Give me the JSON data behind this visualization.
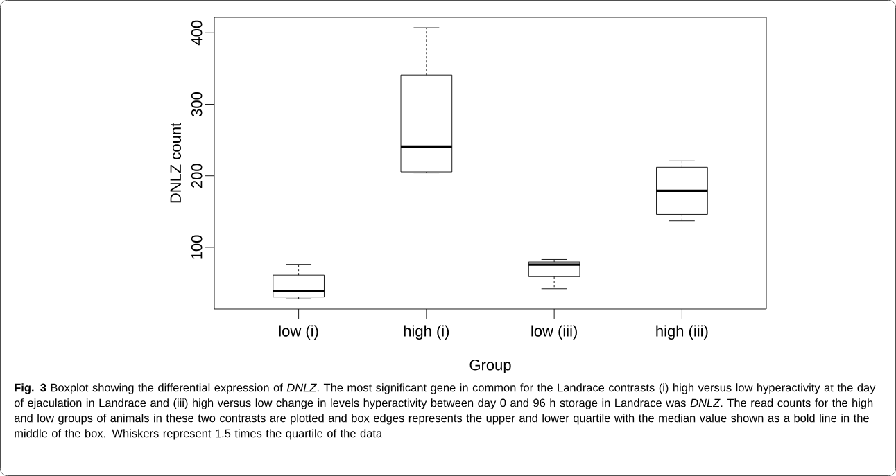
{
  "chart_data": {
    "type": "box",
    "xlabel": "Group",
    "ylabel": "DNLZ count",
    "categories": [
      "low (i)",
      "high (i)",
      "low (iii)",
      "high (iii)"
    ],
    "boxes": [
      {
        "low": 28,
        "q1": 30.5,
        "median": 39,
        "q3": 61,
        "high": 76
      },
      {
        "low": 204,
        "q1": 205.5,
        "median": 241,
        "q3": 341,
        "high": 407
      },
      {
        "low": 42,
        "q1": 59,
        "median": 75.6,
        "q3": 79.5,
        "high": 83
      },
      {
        "low": 137,
        "q1": 146,
        "median": 179,
        "q3": 212,
        "high": 220.7
      }
    ],
    "ylim": [
      13.7,
      421.6
    ],
    "yticks": [
      100,
      200,
      300,
      400
    ],
    "annotations": [
      "**Fig. 3** Boxplot showing the differential expression of *DNLZ*. The most significant gene in common for the Landrace contrasts (i) high versus low hyperactivity at the day of ejaculation in Landrace and (iii) high versus low change in levels hyperactivity between day 0 and 96 h storage in Landrace was *DNLZ*. The read counts for the high and low groups of animals in these two contrasts are plotted and box edges represents the upper and lower quartile with the median value shown as a bold line in the middle of the box. Whiskers represent 1.5 times the quartile of the data"
    ]
  }
}
